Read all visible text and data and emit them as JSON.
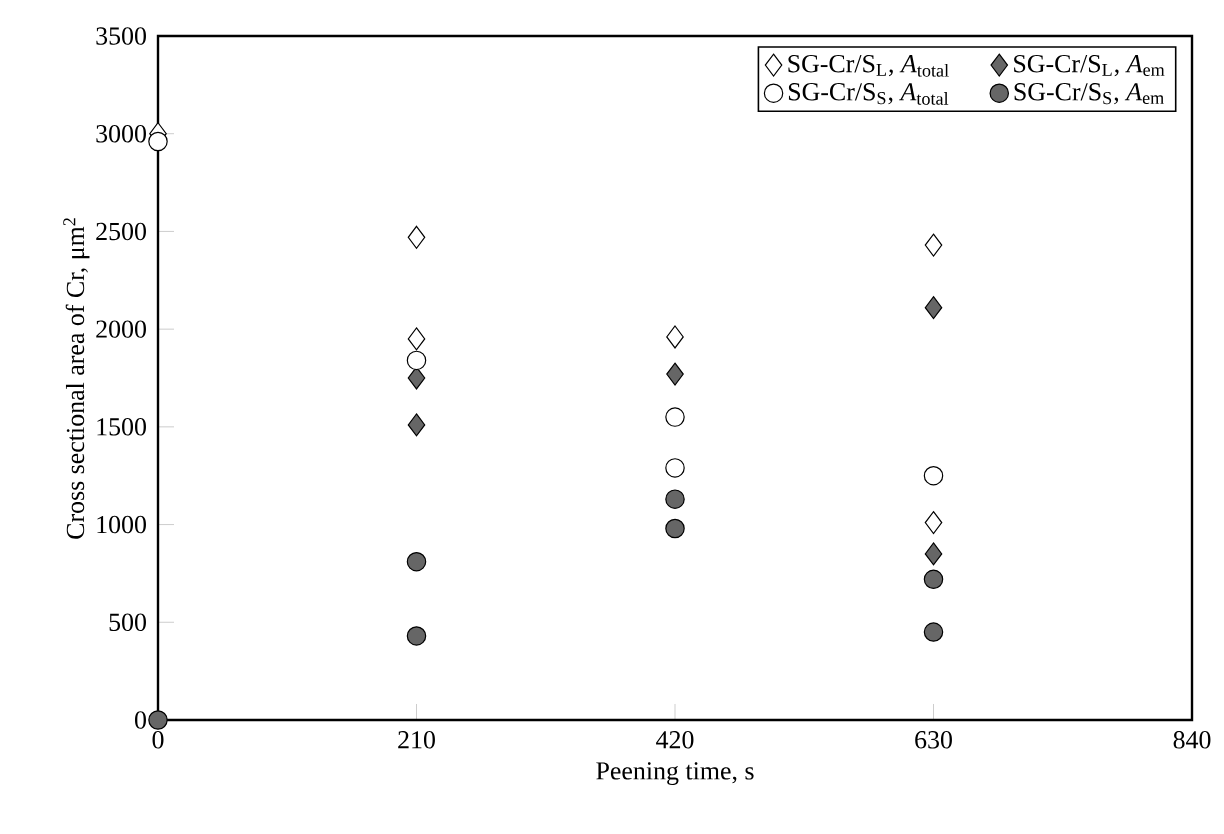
{
  "chart_data": {
    "type": "scatter",
    "xlabel": "Peening time, s",
    "ylabel": "Cross sectional area of Cr, μm$^{2}$",
    "xlim": [
      0,
      840
    ],
    "xticks": [
      0,
      210,
      420,
      630,
      840
    ],
    "ylim": [
      0,
      3500
    ],
    "yticks": [
      0,
      500,
      1000,
      1500,
      2000,
      2500,
      3000,
      3500
    ],
    "grid": false,
    "legend": "top right",
    "series": [
      {
        "name": "SG-Cr/S$_{L}$, *A*$_{total}$",
        "color": "#ffffff",
        "marker": "diamond",
        "x": [
          0,
          210,
          210,
          420,
          630,
          630
        ],
        "values": [
          3000,
          2470,
          1950,
          1960,
          2430,
          1010
        ]
      },
      {
        "name": "SG-Cr/S$_{S}$, *A*$_{total}$",
        "color": "#ffffff",
        "marker": "circle",
        "x": [
          0,
          210,
          420,
          420,
          630
        ],
        "values": [
          2960,
          1840,
          1550,
          1290,
          1250
        ]
      },
      {
        "name": "SG-Cr/S$_{L}$, *A*$_{em}$",
        "color": "#666666",
        "marker": "diamond",
        "x": [
          210,
          210,
          420,
          630,
          630
        ],
        "values": [
          1750,
          1510,
          1770,
          2110,
          850
        ]
      },
      {
        "name": "SG-Cr/S$_{S}$, *A*$_{em}$",
        "color": "#666666",
        "marker": "circle",
        "x": [
          0,
          210,
          210,
          420,
          420,
          630,
          630
        ],
        "values": [
          0,
          810,
          430,
          1130,
          980,
          720,
          450
        ]
      }
    ]
  }
}
